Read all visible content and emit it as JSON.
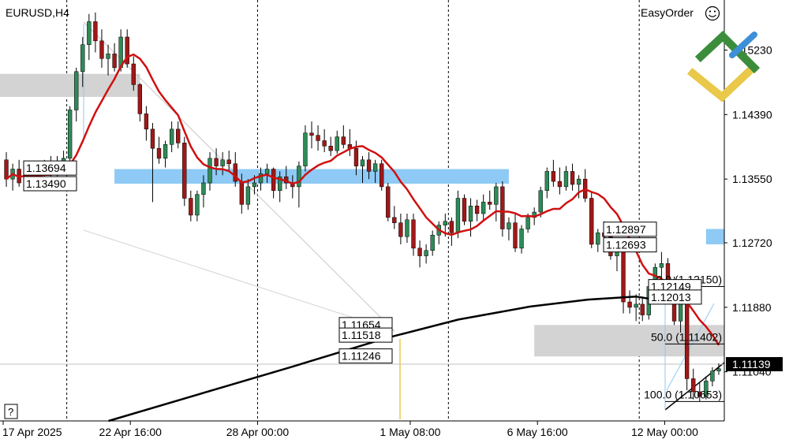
{
  "header": {
    "symbol_timeframe": "EURUSD,H4",
    "expert_name": "EasyOrder",
    "smiley_icon": "smiley-icon"
  },
  "help_button": {
    "label": "?"
  },
  "colors": {
    "bull": "#2e8b57",
    "bear": "#a01818",
    "wick": "#000000",
    "ma_fast": "#d01010",
    "ma_slow": "#000000",
    "zone_blue": "#8ecaf5",
    "zone_gray": "#d3d3d3",
    "logo_green": "#3b8d3b",
    "logo_blue": "#3d8fd8",
    "logo_yellow": "#e9c84a"
  },
  "chart_data": {
    "type": "candlestick",
    "symbol": "EURUSD",
    "timeframe": "H4",
    "ylim": [
      1.104,
      1.158
    ],
    "yticks": [
      {
        "value": 1.1523,
        "label": "1.15230"
      },
      {
        "value": 1.1439,
        "label": "1.14390"
      },
      {
        "value": 1.1355,
        "label": "1.13550"
      },
      {
        "value": 1.1272,
        "label": "1.12720"
      },
      {
        "value": 1.1188,
        "label": "1.11880"
      },
      {
        "value": 1.1104,
        "label": "1.11040"
      }
    ],
    "xticks": [
      {
        "index": 0,
        "label": "17 Apr 2025"
      },
      {
        "index": 20,
        "label": "22 Apr 16:00"
      },
      {
        "index": 40,
        "label": "28 Apr 00:00"
      },
      {
        "index": 64,
        "label": "1 May 08:00"
      },
      {
        "index": 84,
        "label": "6 May 16:00"
      },
      {
        "index": 104,
        "label": "12 May 00:00"
      }
    ],
    "period_separators": [
      10,
      40,
      70,
      100
    ],
    "current_price": {
      "value": 1.11139,
      "label": "1.11139"
    },
    "candles": [
      [
        1.138,
        1.139,
        1.1345,
        1.1355
      ],
      [
        1.1355,
        1.1375,
        1.134,
        1.1368
      ],
      [
        1.1368,
        1.138,
        1.1345,
        1.135
      ],
      [
        1.135,
        1.1372,
        1.1342,
        1.1365
      ],
      [
        1.1365,
        1.1378,
        1.1348,
        1.1355
      ],
      [
        1.1355,
        1.137,
        1.1345,
        1.1362
      ],
      [
        1.1362,
        1.138,
        1.135,
        1.137
      ],
      [
        1.137,
        1.1385,
        1.1355,
        1.136
      ],
      [
        1.136,
        1.1385,
        1.1352,
        1.1378
      ],
      [
        1.1378,
        1.1392,
        1.1365,
        1.1382
      ],
      [
        1.1382,
        1.145,
        1.1375,
        1.1445
      ],
      [
        1.1445,
        1.15,
        1.143,
        1.1495
      ],
      [
        1.1495,
        1.154,
        1.1475,
        1.153
      ],
      [
        1.153,
        1.157,
        1.151,
        1.156
      ],
      [
        1.156,
        1.1572,
        1.152,
        1.1535
      ],
      [
        1.1535,
        1.155,
        1.15,
        1.1512
      ],
      [
        1.1512,
        1.153,
        1.149,
        1.1518
      ],
      [
        1.1518,
        1.1532,
        1.1495,
        1.15
      ],
      [
        1.15,
        1.155,
        1.1495,
        1.154
      ],
      [
        1.154,
        1.155,
        1.15,
        1.1505
      ],
      [
        1.1505,
        1.1515,
        1.147,
        1.1478
      ],
      [
        1.1478,
        1.148,
        1.143,
        1.144
      ],
      [
        1.144,
        1.145,
        1.1405,
        1.142
      ],
      [
        1.142,
        1.1428,
        1.1325,
        1.1395
      ],
      [
        1.1395,
        1.141,
        1.1375,
        1.1382
      ],
      [
        1.1382,
        1.1405,
        1.137,
        1.14
      ],
      [
        1.14,
        1.143,
        1.139,
        1.142
      ],
      [
        1.142,
        1.143,
        1.1395,
        1.1402
      ],
      [
        1.1402,
        1.141,
        1.132,
        1.133
      ],
      [
        1.133,
        1.134,
        1.13,
        1.1308
      ],
      [
        1.1308,
        1.134,
        1.13,
        1.1335
      ],
      [
        1.1335,
        1.136,
        1.1318,
        1.135
      ],
      [
        1.135,
        1.139,
        1.134,
        1.1382
      ],
      [
        1.1382,
        1.1395,
        1.136,
        1.1372
      ],
      [
        1.1372,
        1.139,
        1.136,
        1.138
      ],
      [
        1.138,
        1.1392,
        1.1365,
        1.1375
      ],
      [
        1.1375,
        1.139,
        1.1345,
        1.1352
      ],
      [
        1.1352,
        1.1362,
        1.131,
        1.1322
      ],
      [
        1.1322,
        1.1355,
        1.1315,
        1.1345
      ],
      [
        1.1345,
        1.136,
        1.1335,
        1.135
      ],
      [
        1.135,
        1.137,
        1.134,
        1.1362
      ],
      [
        1.1362,
        1.1375,
        1.135,
        1.1368
      ],
      [
        1.1368,
        1.137,
        1.133,
        1.134
      ],
      [
        1.134,
        1.1365,
        1.1325,
        1.1358
      ],
      [
        1.1358,
        1.1372,
        1.1342,
        1.135
      ],
      [
        1.135,
        1.136,
        1.133,
        1.1345
      ],
      [
        1.1345,
        1.1378,
        1.1318,
        1.1372
      ],
      [
        1.1372,
        1.1425,
        1.1365,
        1.1415
      ],
      [
        1.1415,
        1.143,
        1.1395,
        1.1412
      ],
      [
        1.1412,
        1.1425,
        1.1392,
        1.1405
      ],
      [
        1.1405,
        1.142,
        1.139,
        1.1398
      ],
      [
        1.1398,
        1.141,
        1.1385,
        1.1392
      ],
      [
        1.1392,
        1.1418,
        1.1388,
        1.141
      ],
      [
        1.141,
        1.1425,
        1.1395,
        1.14
      ],
      [
        1.14,
        1.142,
        1.1385,
        1.1395
      ],
      [
        1.1395,
        1.1405,
        1.136,
        1.1372
      ],
      [
        1.1372,
        1.1385,
        1.135,
        1.138
      ],
      [
        1.138,
        1.139,
        1.1355,
        1.1365
      ],
      [
        1.1365,
        1.138,
        1.135,
        1.1375
      ],
      [
        1.1375,
        1.138,
        1.134,
        1.1345
      ],
      [
        1.1345,
        1.135,
        1.13,
        1.1305
      ],
      [
        1.1305,
        1.132,
        1.129,
        1.1298
      ],
      [
        1.1298,
        1.131,
        1.127,
        1.128
      ],
      [
        1.128,
        1.131,
        1.1272,
        1.1302
      ],
      [
        1.1302,
        1.131,
        1.1255,
        1.1265
      ],
      [
        1.1265,
        1.1275,
        1.124,
        1.1255
      ],
      [
        1.1255,
        1.127,
        1.1245,
        1.1262
      ],
      [
        1.1262,
        1.1288,
        1.1255,
        1.1282
      ],
      [
        1.1282,
        1.13,
        1.127,
        1.1295
      ],
      [
        1.1295,
        1.131,
        1.128,
        1.13
      ],
      [
        1.13,
        1.1305,
        1.1268,
        1.1285
      ],
      [
        1.1285,
        1.134,
        1.1278,
        1.133
      ],
      [
        1.133,
        1.1335,
        1.1295,
        1.13
      ],
      [
        1.13,
        1.133,
        1.128,
        1.132
      ],
      [
        1.132,
        1.1328,
        1.13,
        1.131
      ],
      [
        1.131,
        1.1335,
        1.1302,
        1.1325
      ],
      [
        1.1325,
        1.134,
        1.1315,
        1.1322
      ],
      [
        1.1322,
        1.135,
        1.13,
        1.1345
      ],
      [
        1.1345,
        1.1352,
        1.128,
        1.129
      ],
      [
        1.129,
        1.1305,
        1.1275,
        1.1298
      ],
      [
        1.1298,
        1.131,
        1.126,
        1.1265
      ],
      [
        1.1265,
        1.1295,
        1.1258,
        1.129
      ],
      [
        1.129,
        1.131,
        1.1285,
        1.1305
      ],
      [
        1.1305,
        1.1318,
        1.1295,
        1.1312
      ],
      [
        1.1312,
        1.1345,
        1.1305,
        1.134
      ],
      [
        1.134,
        1.137,
        1.133,
        1.1365
      ],
      [
        1.1365,
        1.138,
        1.1345,
        1.1352
      ],
      [
        1.1352,
        1.137,
        1.1335,
        1.1345
      ],
      [
        1.1345,
        1.1372,
        1.134,
        1.1365
      ],
      [
        1.1365,
        1.1375,
        1.134,
        1.1348
      ],
      [
        1.1348,
        1.136,
        1.133,
        1.1355
      ],
      [
        1.1355,
        1.1368,
        1.1325,
        1.133
      ],
      [
        1.133,
        1.1338,
        1.1265,
        1.127
      ],
      [
        1.127,
        1.129,
        1.126,
        1.1285
      ],
      [
        1.1285,
        1.13,
        1.127,
        1.128
      ],
      [
        1.128,
        1.129,
        1.125,
        1.1255
      ],
      [
        1.1255,
        1.127,
        1.1235,
        1.1262
      ],
      [
        1.1262,
        1.1275,
        1.118,
        1.1195
      ],
      [
        1.1195,
        1.121,
        1.118,
        1.1188
      ],
      [
        1.1188,
        1.1205,
        1.117,
        1.1192
      ],
      [
        1.1192,
        1.1202,
        1.117,
        1.1178
      ],
      [
        1.1178,
        1.122,
        1.1172,
        1.1215
      ],
      [
        1.1215,
        1.1245,
        1.1205,
        1.124
      ],
      [
        1.124,
        1.126,
        1.1225,
        1.1245
      ],
      [
        1.1245,
        1.1252,
        1.1215,
        1.1222
      ],
      [
        1.1222,
        1.1228,
        1.1165,
        1.117
      ],
      [
        1.117,
        1.121,
        1.1155,
        1.12
      ],
      [
        1.12,
        1.1205,
        1.108,
        1.1095
      ],
      [
        1.1095,
        1.1108,
        1.1068,
        1.1078
      ],
      [
        1.1078,
        1.109,
        1.1065,
        1.1072
      ],
      [
        1.1072,
        1.1098,
        1.1068,
        1.1092
      ],
      [
        1.1092,
        1.111,
        1.1085,
        1.1105
      ],
      [
        1.1105,
        1.1115,
        1.11,
        1.1108
      ]
    ],
    "price_labels": [
      {
        "value": 1.13694,
        "label": "1.13694"
      },
      {
        "value": 1.1349,
        "label": "1.13490"
      },
      {
        "value": 1.12897,
        "label": "1.12897"
      },
      {
        "value": 1.12693,
        "label": "1.12693"
      },
      {
        "value": 1.11654,
        "label": "1.11654"
      },
      {
        "value": 1.11518,
        "label": "1.11518"
      },
      {
        "value": 1.11246,
        "label": "1.11246"
      },
      {
        "value": 1.12149,
        "label": "1.12149"
      },
      {
        "value": 1.12013,
        "label": "1.12013"
      }
    ],
    "fibonacci": [
      {
        "level": "0.0",
        "value": 1.1215,
        "label": "0.0 (1.12150)"
      },
      {
        "level": "50.0",
        "value": 1.11402,
        "label": "50.0 (1.11402)"
      },
      {
        "level": "100.0",
        "value": 1.10653,
        "label": "100.0 (1.10653)"
      }
    ]
  }
}
